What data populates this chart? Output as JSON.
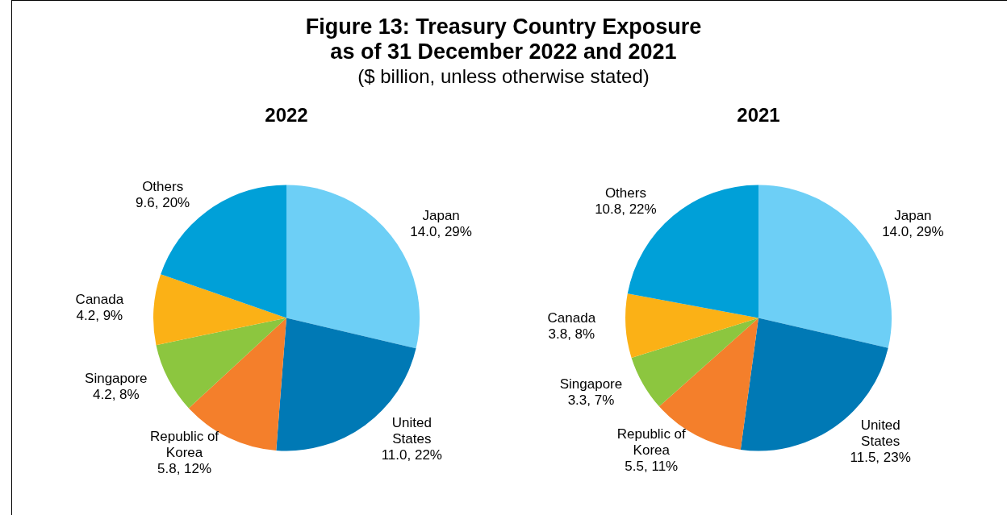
{
  "chart_data": [
    {
      "type": "other",
      "title": "Figure 13: Treasury Country Exposure\nas of 31 December 2022 and 2021",
      "subtitle": "($ billion, unless otherwise stated)"
    },
    {
      "type": "pie",
      "title": "2022",
      "categories": [
        "Japan",
        "United States",
        "Republic of Korea",
        "Singapore",
        "Canada",
        "Others"
      ],
      "values": [
        14.0,
        11.0,
        5.8,
        4.2,
        4.2,
        9.6
      ],
      "value_labels": [
        "14.0, 29%",
        "11.0, 22%",
        "5.8, 12%",
        "4.2, 8%",
        "4.2, 9%",
        "9.6, 20%"
      ],
      "colors": [
        "#6dcff6",
        "#0079b5",
        "#f47f2b",
        "#8cc63f",
        "#fbb116",
        "#00a0d8"
      ]
    },
    {
      "type": "pie",
      "title": "2021",
      "categories": [
        "Japan",
        "United States",
        "Republic of Korea",
        "Singapore",
        "Canada",
        "Others"
      ],
      "values": [
        14.0,
        11.5,
        5.5,
        3.3,
        3.8,
        10.8
      ],
      "value_labels": [
        "14.0, 29%",
        "11.5, 23%",
        "5.5, 11%",
        "3.3, 7%",
        "3.8, 8%",
        "10.8, 22%"
      ],
      "colors": [
        "#6dcff6",
        "#0079b5",
        "#f47f2b",
        "#8cc63f",
        "#fbb116",
        "#00a0d8"
      ]
    }
  ]
}
